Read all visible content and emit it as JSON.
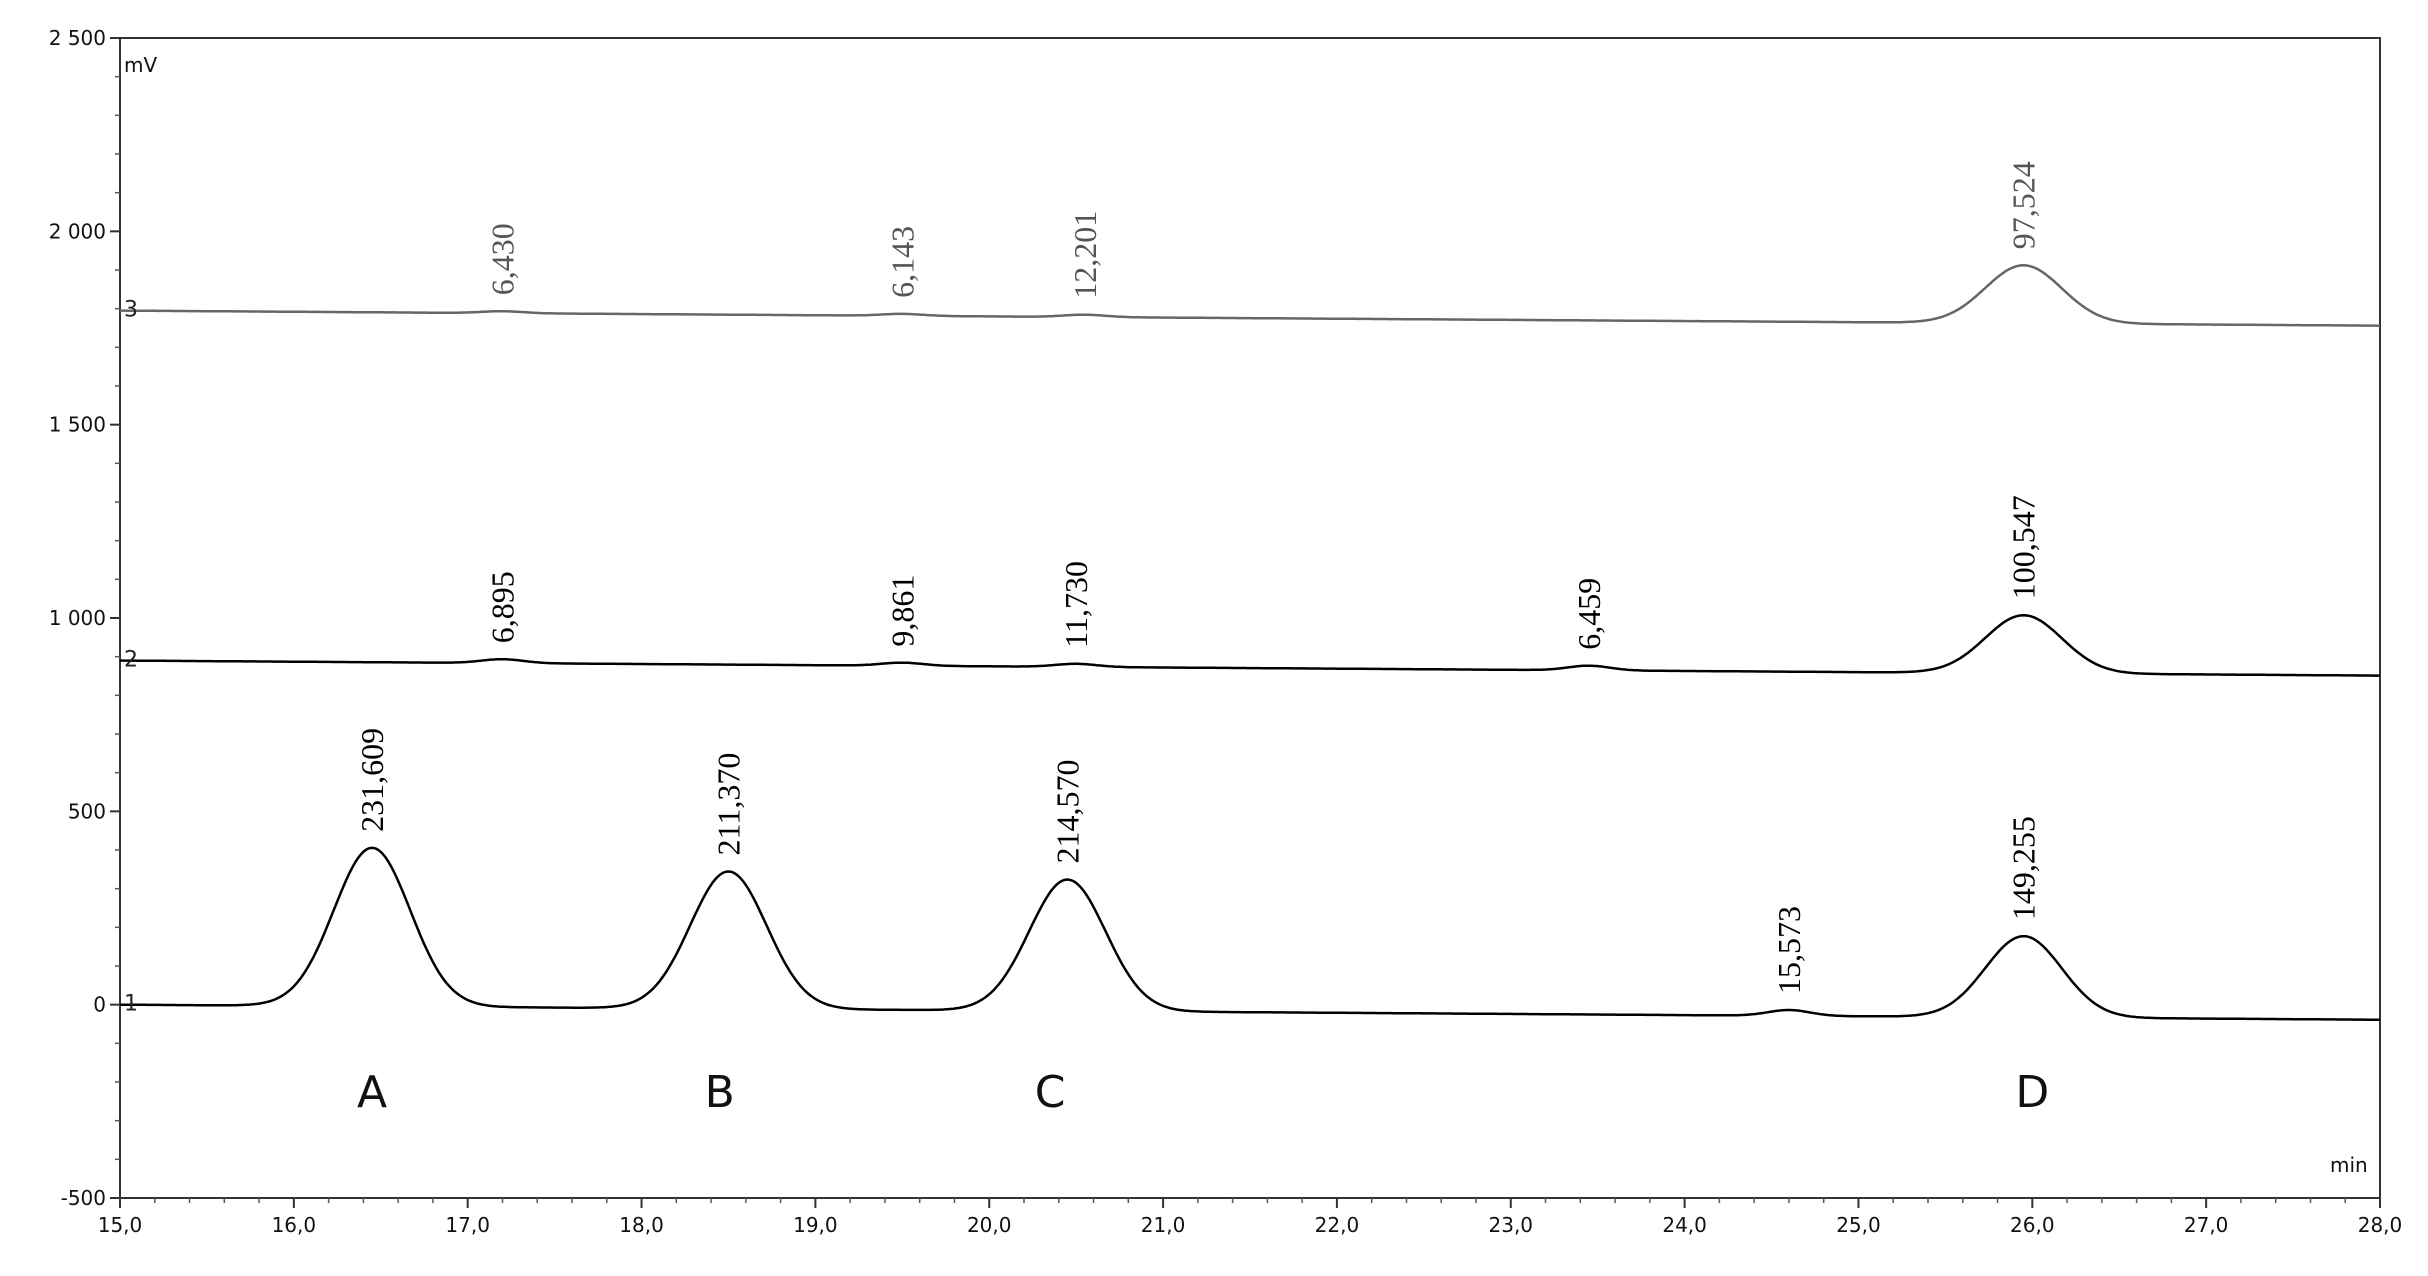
{
  "chart_data": {
    "type": "line",
    "title": "",
    "xlabel": "min",
    "ylabel": "mV",
    "xlim": [
      15.0,
      28.0
    ],
    "ylim": [
      -500,
      2500
    ],
    "x_ticks": [
      "15,0",
      "16,0",
      "17,0",
      "18,0",
      "19,0",
      "20,0",
      "21,0",
      "22,0",
      "23,0",
      "24,0",
      "25,0",
      "26,0",
      "27,0",
      "28,0"
    ],
    "y_ticks": [
      "-500",
      "0",
      "500",
      "1 000",
      "1 500",
      "2 000",
      "2 500"
    ],
    "series": [
      {
        "name": "1",
        "baseline": 0,
        "color": "#000000",
        "peaks": [
          {
            "rt": 16.45,
            "height": 410,
            "label": "231,609"
          },
          {
            "rt": 18.5,
            "height": 355,
            "label": "211,370"
          },
          {
            "rt": 20.45,
            "height": 340,
            "label": "214,570"
          },
          {
            "rt": 24.6,
            "height": 15,
            "label": "15,573"
          },
          {
            "rt": 25.95,
            "height": 210,
            "label": "149,255"
          }
        ]
      },
      {
        "name": "2",
        "baseline": 890,
        "color": "#000000",
        "peaks": [
          {
            "rt": 17.2,
            "height": 10,
            "label": "6,895"
          },
          {
            "rt": 19.5,
            "height": 8,
            "label": "9,861"
          },
          {
            "rt": 20.5,
            "height": 8,
            "label": "11,730"
          },
          {
            "rt": 23.45,
            "height": 12,
            "label": "6,459"
          },
          {
            "rt": 25.95,
            "height": 150,
            "label": "100,547"
          }
        ]
      },
      {
        "name": "3",
        "baseline": 1795,
        "color": "#666666",
        "peaks": [
          {
            "rt": 17.2,
            "height": 5,
            "label": "6,430"
          },
          {
            "rt": 19.5,
            "height": 5,
            "label": "6,143"
          },
          {
            "rt": 20.55,
            "height": 6,
            "label": "12,201"
          },
          {
            "rt": 25.95,
            "height": 150,
            "label": "97,524"
          }
        ]
      }
    ],
    "annotations": [
      {
        "text": "A",
        "x": 16.45,
        "y": -265
      },
      {
        "text": "B",
        "x": 18.45,
        "y": -265
      },
      {
        "text": "C",
        "x": 20.35,
        "y": -265
      },
      {
        "text": "D",
        "x": 26.0,
        "y": -265
      }
    ]
  }
}
